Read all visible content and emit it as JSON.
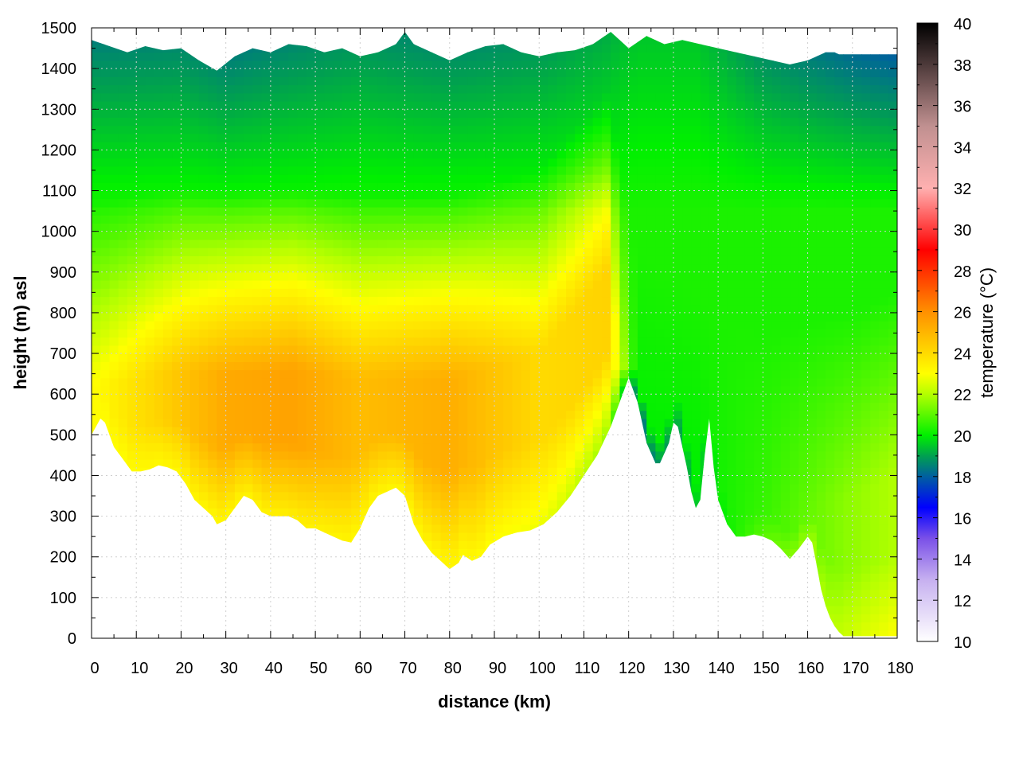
{
  "chart_data": {
    "type": "heatmap",
    "title": "",
    "xlabel": "distance (km)",
    "ylabel": "height (m) asl",
    "colorbar_label": "temperature (°C)",
    "xlim": [
      0,
      180
    ],
    "ylim": [
      0,
      1500
    ],
    "clim": [
      10,
      40
    ],
    "grid": true,
    "x_ticks": [
      0,
      10,
      20,
      30,
      40,
      50,
      60,
      70,
      80,
      90,
      100,
      110,
      120,
      130,
      140,
      150,
      160,
      170,
      180
    ],
    "y_ticks": [
      0,
      100,
      200,
      300,
      400,
      500,
      600,
      700,
      800,
      900,
      1000,
      1100,
      1200,
      1300,
      1400,
      1500
    ],
    "colorbar_ticks": [
      10,
      12,
      14,
      16,
      18,
      20,
      22,
      24,
      26,
      28,
      30,
      32,
      34,
      36,
      38,
      40
    ],
    "colormap": [
      {
        "value": 10,
        "color": "#ffffff"
      },
      {
        "value": 13,
        "color": "#c6b0f0"
      },
      {
        "value": 15,
        "color": "#7a50e8"
      },
      {
        "value": 16.5,
        "color": "#0000ff"
      },
      {
        "value": 18,
        "color": "#005fa0"
      },
      {
        "value": 19,
        "color": "#00a050"
      },
      {
        "value": 20,
        "color": "#00f000"
      },
      {
        "value": 22,
        "color": "#b4ff00"
      },
      {
        "value": 23,
        "color": "#ffff00"
      },
      {
        "value": 26,
        "color": "#ff9000"
      },
      {
        "value": 29,
        "color": "#ff0000"
      },
      {
        "value": 32,
        "color": "#ffb0b0"
      },
      {
        "value": 35,
        "color": "#c09090"
      },
      {
        "value": 40,
        "color": "#000000"
      }
    ],
    "terrain_profile": {
      "distance_km": [
        0,
        2,
        3,
        5,
        7,
        9,
        11,
        13,
        15,
        17,
        19,
        21,
        23,
        25,
        27,
        28,
        30,
        32,
        34,
        36,
        38,
        40,
        42,
        44,
        46,
        48,
        50,
        52,
        54,
        56,
        58,
        60,
        62,
        64,
        66,
        68,
        70,
        72,
        74,
        76,
        78,
        80,
        82,
        83,
        85,
        87,
        89,
        92,
        95,
        98,
        101,
        104,
        107,
        110,
        113,
        116,
        118,
        120,
        122,
        124,
        126,
        127,
        129,
        130,
        131,
        133,
        134,
        135,
        136,
        137,
        138,
        139,
        140,
        142,
        144,
        146,
        148,
        150,
        152,
        154,
        156,
        158,
        160,
        161,
        162,
        163,
        164,
        165,
        166,
        167,
        168,
        170,
        172,
        174,
        176,
        178,
        180
      ],
      "height_m": [
        500,
        540,
        530,
        470,
        440,
        410,
        410,
        415,
        425,
        420,
        410,
        380,
        340,
        320,
        300,
        280,
        290,
        320,
        350,
        340,
        310,
        300,
        300,
        300,
        290,
        270,
        270,
        260,
        250,
        240,
        235,
        270,
        320,
        350,
        360,
        370,
        350,
        280,
        240,
        210,
        190,
        170,
        185,
        205,
        190,
        200,
        230,
        250,
        260,
        265,
        280,
        310,
        350,
        400,
        450,
        520,
        580,
        640,
        580,
        480,
        430,
        430,
        480,
        530,
        520,
        420,
        360,
        320,
        340,
        450,
        540,
        420,
        340,
        280,
        250,
        250,
        255,
        250,
        240,
        220,
        195,
        220,
        250,
        235,
        180,
        120,
        80,
        50,
        30,
        15,
        5,
        5,
        5,
        5,
        5,
        5,
        5
      ]
    },
    "top_edge": {
      "distance_km": [
        0,
        4,
        8,
        12,
        16,
        20,
        24,
        28,
        32,
        36,
        40,
        44,
        48,
        52,
        56,
        60,
        64,
        68,
        70,
        72,
        76,
        80,
        84,
        88,
        92,
        96,
        100,
        104,
        108,
        112,
        116,
        118,
        120,
        124,
        128,
        132,
        136,
        140,
        144,
        148,
        152,
        156,
        160,
        164,
        166,
        167,
        180
      ],
      "height_m": [
        1470,
        1455,
        1440,
        1455,
        1445,
        1450,
        1420,
        1395,
        1430,
        1450,
        1440,
        1460,
        1455,
        1440,
        1450,
        1430,
        1440,
        1460,
        1490,
        1460,
        1440,
        1420,
        1440,
        1455,
        1460,
        1440,
        1430,
        1440,
        1445,
        1460,
        1490,
        1470,
        1450,
        1480,
        1460,
        1470,
        1460,
        1450,
        1440,
        1430,
        1420,
        1410,
        1420,
        1440,
        1440,
        1435,
        1435
      ]
    },
    "temperature_structure": [
      {
        "distance_km": 0,
        "inversion_top_m": 620,
        "surface_temp_c": 23.0,
        "warm_core_temp_c": 23.0,
        "aloft_temp_c": 18.5
      },
      {
        "distance_km": 20,
        "inversion_top_m": 660,
        "surface_temp_c": 23.2,
        "warm_core_temp_c": 24.6,
        "aloft_temp_c": 18.6
      },
      {
        "distance_km": 30,
        "inversion_top_m": 650,
        "surface_temp_c": 23.2,
        "warm_core_temp_c": 25.3,
        "aloft_temp_c": 18.3
      },
      {
        "distance_km": 45,
        "inversion_top_m": 660,
        "surface_temp_c": 23.4,
        "warm_core_temp_c": 25.5,
        "aloft_temp_c": 18.6
      },
      {
        "distance_km": 60,
        "inversion_top_m": 640,
        "surface_temp_c": 23.2,
        "warm_core_temp_c": 24.8,
        "aloft_temp_c": 18.8
      },
      {
        "distance_km": 80,
        "inversion_top_m": 640,
        "surface_temp_c": 23.2,
        "warm_core_temp_c": 25.2,
        "aloft_temp_c": 18.6
      },
      {
        "distance_km": 100,
        "inversion_top_m": 700,
        "surface_temp_c": 22.8,
        "warm_core_temp_c": 24.0,
        "aloft_temp_c": 18.8
      },
      {
        "distance_km": 115,
        "inversion_top_m": 900,
        "surface_temp_c": 21.8,
        "warm_core_temp_c": 24.2,
        "aloft_temp_c": 19.2
      },
      {
        "distance_km": 122,
        "inversion_top_m": 500,
        "surface_temp_c": 18.4,
        "warm_core_temp_c": 20.0,
        "aloft_temp_c": 19.5
      },
      {
        "distance_km": 135,
        "inversion_top_m": 400,
        "surface_temp_c": 19.4,
        "warm_core_temp_c": 20.0,
        "aloft_temp_c": 19.5
      },
      {
        "distance_km": 150,
        "inversion_top_m": 300,
        "surface_temp_c": 21.0,
        "warm_core_temp_c": 20.6,
        "aloft_temp_c": 18.6
      },
      {
        "distance_km": 170,
        "inversion_top_m": 350,
        "surface_temp_c": 22.4,
        "warm_core_temp_c": 21.6,
        "aloft_temp_c": 18.0
      },
      {
        "distance_km": 180,
        "inversion_top_m": 400,
        "surface_temp_c": 23.0,
        "warm_core_temp_c": 22.0,
        "aloft_temp_c": 17.8
      }
    ]
  }
}
